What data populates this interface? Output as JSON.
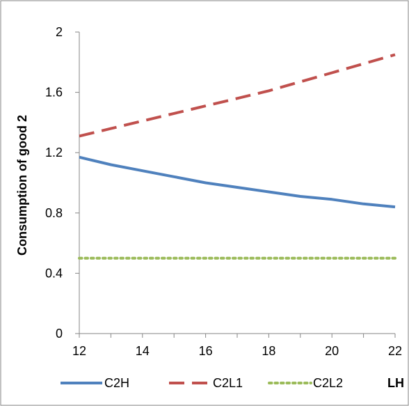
{
  "chart_data": {
    "type": "line",
    "title": "",
    "xlabel": "LH",
    "ylabel": "Consumption of good 2",
    "xlim": [
      12,
      22
    ],
    "ylim": [
      0,
      2
    ],
    "x_ticks": [
      "12",
      "14",
      "16",
      "18",
      "20",
      "22"
    ],
    "y_ticks": [
      "0",
      "0.4",
      "0.8",
      "1.2",
      "1.6",
      "2"
    ],
    "grid": false,
    "legend_position": "bottom",
    "series": [
      {
        "name": "C2H",
        "style": "solid",
        "color": "#4f81bd",
        "x": [
          12,
          13,
          14,
          15,
          16,
          17,
          18,
          19,
          20,
          21,
          22
        ],
        "y": [
          1.17,
          1.12,
          1.08,
          1.04,
          1.0,
          0.97,
          0.94,
          0.91,
          0.89,
          0.86,
          0.84
        ]
      },
      {
        "name": "C2L1",
        "style": "dashed",
        "color": "#c0504d",
        "x": [
          12,
          13,
          14,
          15,
          16,
          17,
          18,
          19,
          20,
          21,
          22
        ],
        "y": [
          1.31,
          1.36,
          1.41,
          1.46,
          1.51,
          1.56,
          1.61,
          1.67,
          1.73,
          1.79,
          1.85
        ]
      },
      {
        "name": "C2L2",
        "style": "dotted",
        "color": "#9bbb59",
        "x": [
          12,
          13,
          14,
          15,
          16,
          17,
          18,
          19,
          20,
          21,
          22
        ],
        "y": [
          0.5,
          0.5,
          0.5,
          0.5,
          0.5,
          0.5,
          0.5,
          0.5,
          0.5,
          0.5,
          0.5
        ]
      }
    ]
  }
}
